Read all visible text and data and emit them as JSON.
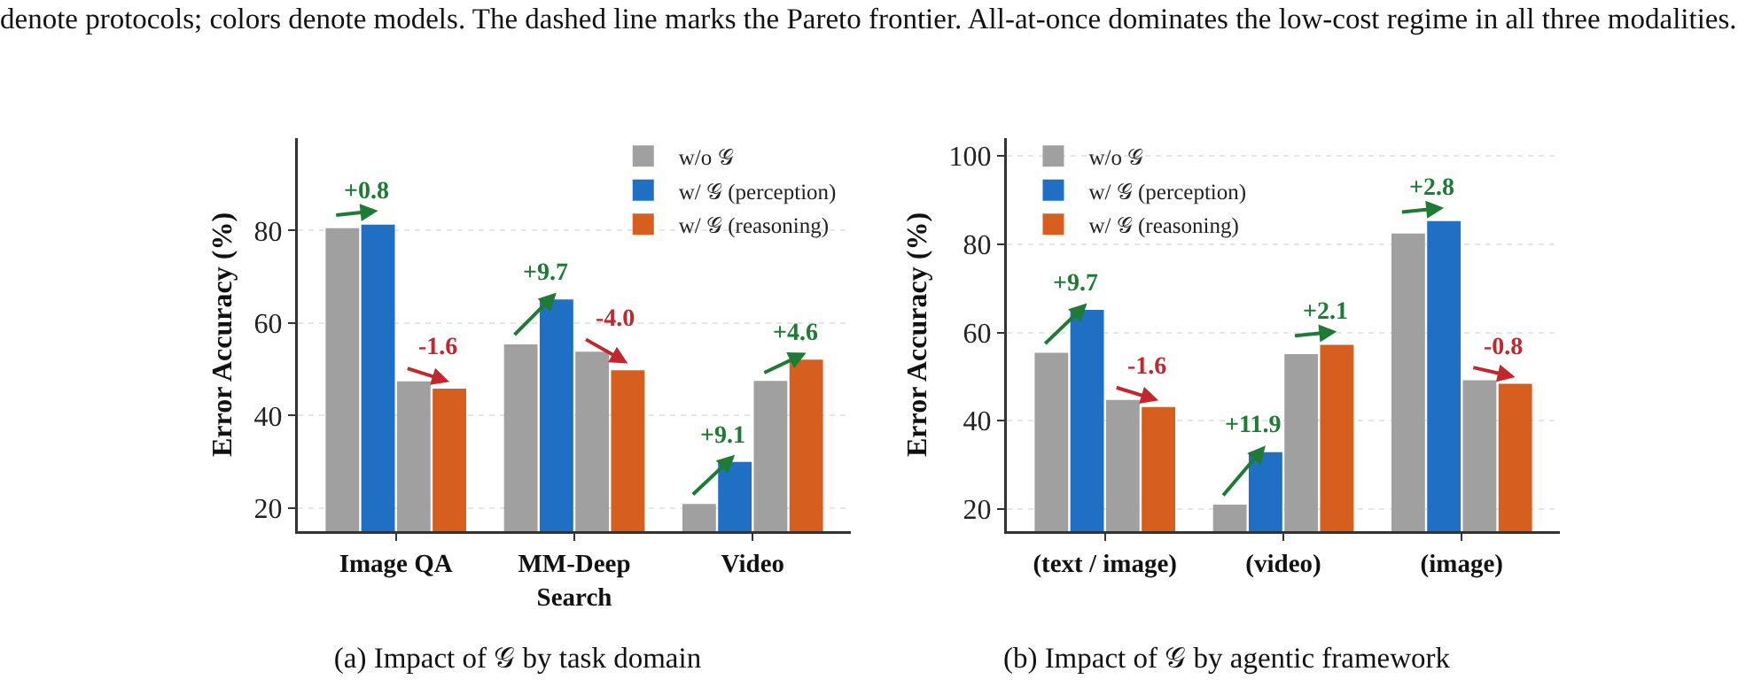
{
  "chart_data": [
    {
      "type": "bar",
      "title": "(a) Impact of 𝒢 by task domain",
      "ylabel": "Error Accuracy (%)",
      "categories": [
        "Image QA",
        "MM-Deep Search",
        "Video"
      ],
      "series": [
        {
          "name": "w/o 𝒢",
          "color": "#a0a0a0",
          "values": [
            80.5,
            55.4,
            20.9
          ]
        },
        {
          "name": "w/ 𝒢 (perception)",
          "color": "#1f6fc5",
          "values": [
            81.3,
            65.1,
            30.0
          ]
        },
        {
          "color": "#a0a0a0",
          "values": [
            47.4,
            53.8,
            47.5
          ]
        },
        {
          "name": "w/ 𝒢 (reasoning)",
          "color": "#d65f20",
          "values": [
            45.8,
            49.8,
            52.1
          ]
        }
      ],
      "ylim": [
        15,
        100
      ],
      "yticks": [
        20,
        40,
        60,
        80
      ],
      "grid": "y",
      "legend": "top right",
      "annotations": [
        "denote protocols; colors denote models. The dashed line marks the Pareto frontier. All-at-once dominates the low-cost regime in all three modalities.",
        "+0.8",
        "-1.6",
        "+9.7",
        "-4.0",
        "+9.1",
        "+4.6"
      ]
    },
    {
      "type": "bar",
      "title": "(b) Impact of 𝒢 by agentic framework",
      "ylabel": "Error Accuracy (%)",
      "categories": [
        "(text / image)",
        "(video)",
        "(image)"
      ],
      "series": [
        {
          "name": "w/o 𝒢",
          "color": "#a0a0a0",
          "values": [
            55.4,
            21.0,
            82.4
          ]
        },
        {
          "name": "w/ 𝒢 (perception)",
          "color": "#1f6fc5",
          "values": [
            65.1,
            32.9,
            85.2
          ]
        },
        {
          "color": "#a0a0a0",
          "values": [
            44.7,
            55.1,
            49.2
          ]
        },
        {
          "name": "w/ 𝒢 (reasoning)",
          "color": "#d65f20",
          "values": [
            43.1,
            57.2,
            48.4
          ]
        }
      ],
      "ylim": [
        15,
        104
      ],
      "yticks": [
        20,
        40,
        60,
        80,
        100
      ],
      "grid": "y",
      "legend": "top left",
      "annotations": [
        "+9.7",
        "-1.6",
        "+11.9",
        "+2.1",
        "+2.8",
        "-0.8"
      ]
    }
  ]
}
